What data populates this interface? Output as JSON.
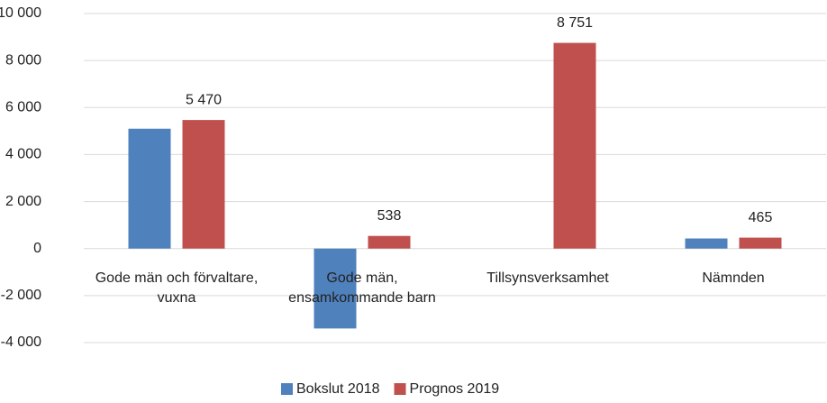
{
  "chart_data": {
    "type": "bar",
    "categories": [
      "Gode män och förvaltare, vuxna",
      "Gode män, ensamkommande barn",
      "Tillsynsverksamhet",
      "Nämnden"
    ],
    "series": [
      {
        "name": "Bokslut 2018",
        "color": "#4f81bd",
        "values": [
          5100,
          -3400,
          0,
          430
        ]
      },
      {
        "name": "Prognos 2019",
        "color": "#c0504d",
        "values": [
          5470,
          538,
          8751,
          465
        ],
        "value_labels": [
          "5 470",
          "538",
          "8 751",
          "465"
        ]
      }
    ],
    "ylim": [
      -4000,
      10000
    ],
    "yticks": [
      {
        "value": -4000,
        "label": "-4 000"
      },
      {
        "value": -2000,
        "label": "-2 000"
      },
      0,
      {
        "value": 2000,
        "label": "2 000"
      },
      {
        "value": 4000,
        "label": "4 000"
      },
      {
        "value": 6000,
        "label": "6 000"
      },
      {
        "value": 8000,
        "label": "8 000"
      },
      {
        "value": 10000,
        "label": "10 000"
      }
    ],
    "grid": true,
    "legend": "bottom"
  }
}
